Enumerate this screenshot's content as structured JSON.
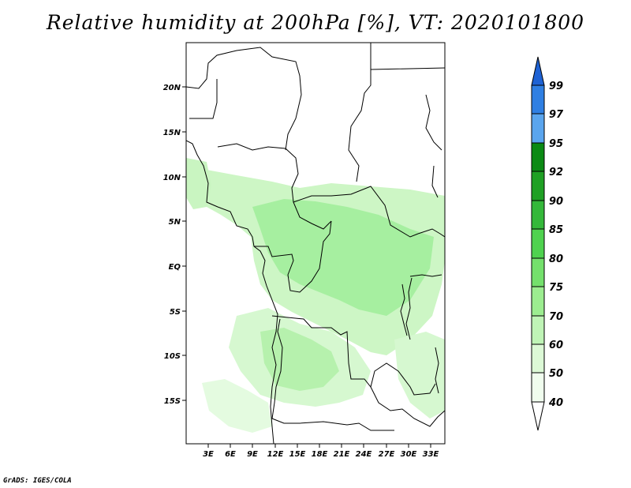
{
  "title": "Relative humidity at 200hPa [%], VT: 2020101800",
  "credit": "GrADS: IGES/COLA",
  "map": {
    "lon_labels": [
      "3E",
      "6E",
      "9E",
      "12E",
      "15E",
      "18E",
      "21E",
      "24E",
      "27E",
      "30E",
      "33E"
    ],
    "lat_labels": [
      "20N",
      "15N",
      "10N",
      "5N",
      "EQ",
      "5S",
      "10S",
      "15S"
    ]
  },
  "colorbar": {
    "levels": [
      "99",
      "97",
      "95",
      "92",
      "90",
      "85",
      "80",
      "75",
      "70",
      "60",
      "50",
      "40"
    ],
    "colors": [
      "#1e62d4",
      "#2f7fe3",
      "#5aa5ee",
      "#0b8a14",
      "#1fa024",
      "#34b83a",
      "#4fd24f",
      "#74e06c",
      "#9ced90",
      "#bff4b6",
      "#dcf9d6",
      "#f0fdee"
    ]
  }
}
